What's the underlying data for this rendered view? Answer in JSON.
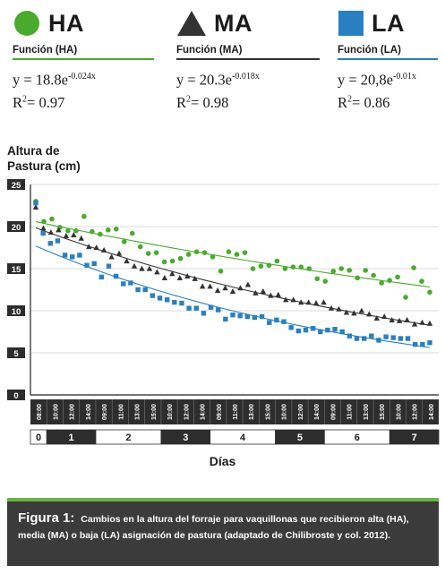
{
  "legend": [
    {
      "name": "HA",
      "color": "#4aaa2e",
      "shape": "circle",
      "func_label": "Función (HA)",
      "eq_base": "y = 18.8e",
      "eq_exp": "-0.024x",
      "r2_prefix": "R",
      "r2_sup": "2",
      "r2_value": "= 0.97"
    },
    {
      "name": "MA",
      "color": "#333333",
      "shape": "triangle",
      "func_label": "Función (MA)",
      "eq_base": "y = 20.3e",
      "eq_exp": "-0.018x",
      "r2_prefix": "R",
      "r2_sup": "2",
      "r2_value": "= 0.98"
    },
    {
      "name": "LA",
      "color": "#2a7fc0",
      "shape": "square",
      "func_label": "Función (LA)",
      "eq_base": "y = 20,8e",
      "eq_exp": "-0.01x",
      "r2_prefix": "R",
      "r2_sup": "2",
      "r2_value": "= 0.86"
    }
  ],
  "chart_data": {
    "type": "scatter",
    "ylabel_line1": "Altura de",
    "ylabel_line2": "Pastura (cm)",
    "xlabel": "Días",
    "ylim": [
      0,
      25
    ],
    "yticks": [
      "0",
      "5",
      "10",
      "15",
      "20",
      "25"
    ],
    "time_labels": [
      "08:00",
      "10:00",
      "12:00",
      "14:00",
      "09:00",
      "11:00",
      "13:00",
      "15:00",
      "10:00",
      "12:00",
      "14:00",
      "09:00",
      "11:00",
      "13:00",
      "15:00",
      "10:00",
      "12:00",
      "14:00",
      "09:00",
      "11:00",
      "13:00",
      "15:00",
      "10:00",
      "12:00",
      "14:00"
    ],
    "day_labels": [
      "0",
      "1",
      "2",
      "3",
      "4",
      "5",
      "6",
      "7"
    ],
    "series": [
      {
        "name": "HA",
        "color": "#4aaa2e",
        "shape": "circle",
        "values": [
          23.0,
          20.6,
          20.9,
          19.9,
          19.5,
          19.5,
          21.2,
          19.4,
          19.1,
          19.6,
          19.7,
          18.2,
          19.2,
          17.6,
          16.8,
          16.9,
          15.8,
          15.9,
          16.2,
          16.7,
          17.0,
          16.9,
          16.4,
          14.7,
          17.0,
          16.7,
          16.9,
          15.0,
          15.3,
          15.4,
          15.9,
          15.0,
          15.2,
          15.2,
          15.0,
          13.8,
          13.5,
          14.7,
          15.0,
          14.8,
          13.9,
          14.8,
          14.2,
          13.3,
          13.6,
          14.0,
          11.6,
          15.1,
          13.5,
          12.2
        ]
      },
      {
        "name": "MA",
        "color": "#333333",
        "shape": "triangle",
        "values": [
          22.3,
          19.8,
          19.3,
          19.6,
          18.9,
          19.0,
          18.6,
          17.6,
          17.5,
          17.2,
          16.4,
          16.8,
          15.9,
          15.3,
          15.0,
          15.0,
          14.6,
          13.9,
          14.4,
          13.9,
          14.1,
          13.8,
          12.9,
          12.9,
          12.4,
          12.7,
          12.3,
          12.7,
          13.1,
          12.1,
          12.3,
          11.8,
          11.9,
          11.3,
          11.3,
          11.0,
          11.0,
          10.9,
          11.0,
          10.3,
          10.2,
          9.8,
          9.7,
          10.0,
          9.6,
          9.1,
          9.3,
          8.9,
          8.8,
          8.9,
          8.4,
          8.6,
          8.5
        ]
      },
      {
        "name": "LA",
        "color": "#2a7fc0",
        "shape": "square",
        "values": [
          22.8,
          19.2,
          18.0,
          18.3,
          16.6,
          16.4,
          16.6,
          15.4,
          15.6,
          14.0,
          15.3,
          14.1,
          13.2,
          13.3,
          12.5,
          12.5,
          11.8,
          11.5,
          11.3,
          11.0,
          10.9,
          10.3,
          10.3,
          9.7,
          10.4,
          10.1,
          9.0,
          9.5,
          9.4,
          9.3,
          9.2,
          9.3,
          8.6,
          8.9,
          8.7,
          8.0,
          7.6,
          7.7,
          7.9,
          7.5,
          7.7,
          7.8,
          7.5,
          7.0,
          6.7,
          6.7,
          7.0,
          6.5,
          6.9,
          6.8,
          6.7,
          6.7,
          6.0,
          6.0,
          6.2
        ]
      }
    ],
    "grid": true
  },
  "caption": {
    "figure": "Figura 1:",
    "text": "Cambios en la altura del forraje para vaquillonas que recibieron alta (HA), media (MA) o baja (LA) asignación de pastura (adaptado de Chilibroste y col. 2012)."
  }
}
